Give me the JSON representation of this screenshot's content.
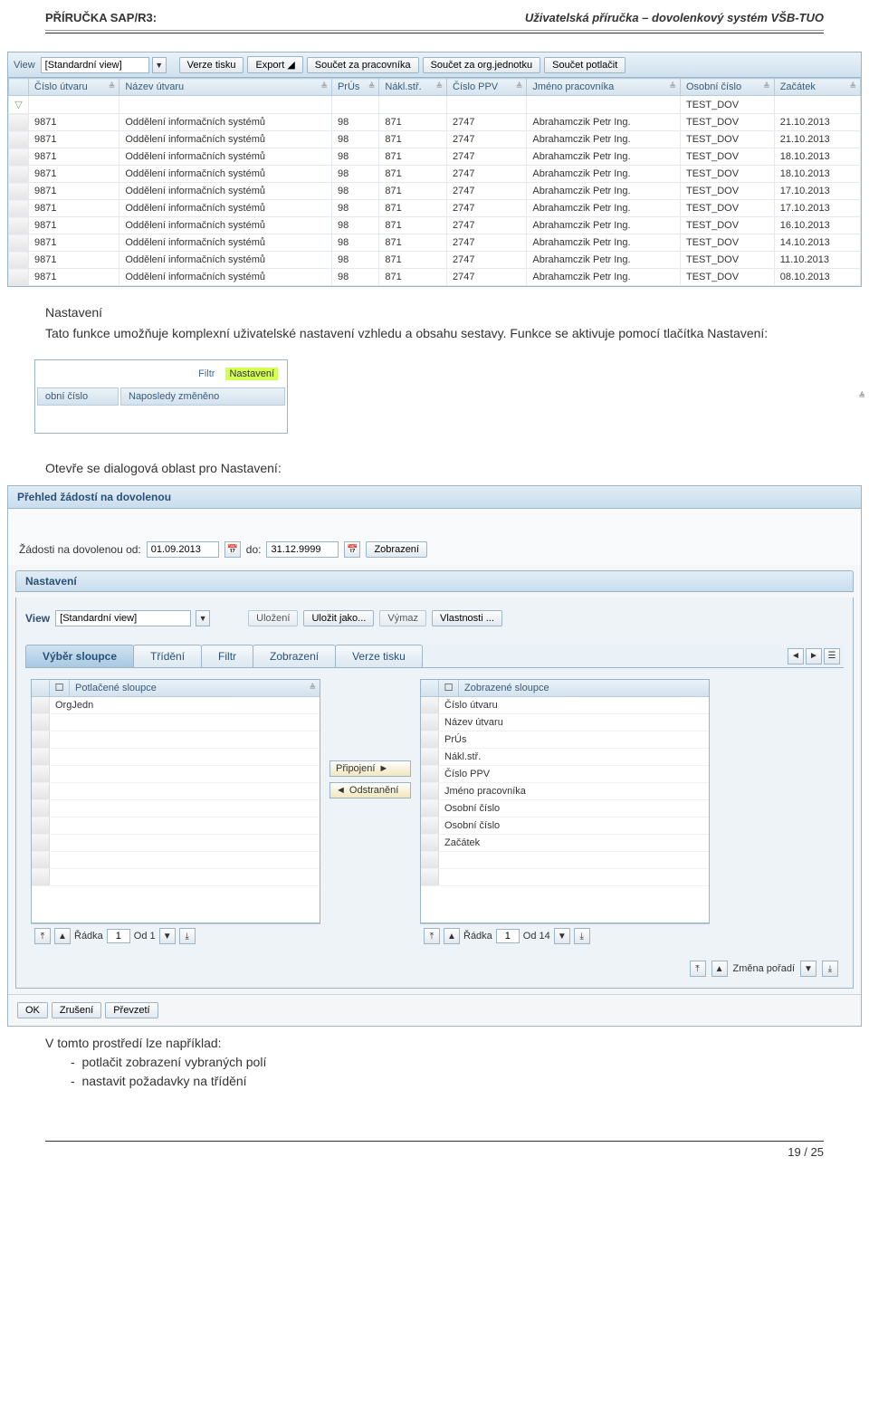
{
  "page": {
    "header_left": "PŘÍRUČKA SAP/R3:",
    "header_right": "Uživatelská příručka – dovolenkový systém VŠB-TUO",
    "footer": "19 / 25"
  },
  "toolbar": {
    "view_label": "View",
    "view_value": "[Standardní view]",
    "buttons": [
      "Verze tisku",
      "Export ◢",
      "Součet za pracovníka",
      "Součet za org.jednotku",
      "Součet potlačit"
    ]
  },
  "columns": [
    "Číslo útvaru",
    "Název útvaru",
    "PrÚs",
    "Nákl.stř.",
    "Číslo PPV",
    "Jméno pracovníka",
    "Osobní číslo",
    "Začátek"
  ],
  "filter_row_personal": "TEST_DOV",
  "rows": [
    {
      "cu": "9871",
      "nazev": "Oddělení informačních systémů",
      "prus": "98",
      "nakl": "871",
      "ppv": "2747",
      "jmeno": "Abrahamczik Petr Ing.",
      "osob": "TEST_DOV",
      "zac": "21.10.2013"
    },
    {
      "cu": "9871",
      "nazev": "Oddělení informačních systémů",
      "prus": "98",
      "nakl": "871",
      "ppv": "2747",
      "jmeno": "Abrahamczik Petr Ing.",
      "osob": "TEST_DOV",
      "zac": "21.10.2013"
    },
    {
      "cu": "9871",
      "nazev": "Oddělení informačních systémů",
      "prus": "98",
      "nakl": "871",
      "ppv": "2747",
      "jmeno": "Abrahamczik Petr Ing.",
      "osob": "TEST_DOV",
      "zac": "18.10.2013"
    },
    {
      "cu": "9871",
      "nazev": "Oddělení informačních systémů",
      "prus": "98",
      "nakl": "871",
      "ppv": "2747",
      "jmeno": "Abrahamczik Petr Ing.",
      "osob": "TEST_DOV",
      "zac": "18.10.2013"
    },
    {
      "cu": "9871",
      "nazev": "Oddělení informačních systémů",
      "prus": "98",
      "nakl": "871",
      "ppv": "2747",
      "jmeno": "Abrahamczik Petr Ing.",
      "osob": "TEST_DOV",
      "zac": "17.10.2013"
    },
    {
      "cu": "9871",
      "nazev": "Oddělení informačních systémů",
      "prus": "98",
      "nakl": "871",
      "ppv": "2747",
      "jmeno": "Abrahamczik Petr Ing.",
      "osob": "TEST_DOV",
      "zac": "17.10.2013"
    },
    {
      "cu": "9871",
      "nazev": "Oddělení informačních systémů",
      "prus": "98",
      "nakl": "871",
      "ppv": "2747",
      "jmeno": "Abrahamczik Petr Ing.",
      "osob": "TEST_DOV",
      "zac": "16.10.2013"
    },
    {
      "cu": "9871",
      "nazev": "Oddělení informačních systémů",
      "prus": "98",
      "nakl": "871",
      "ppv": "2747",
      "jmeno": "Abrahamczik Petr Ing.",
      "osob": "TEST_DOV",
      "zac": "14.10.2013"
    },
    {
      "cu": "9871",
      "nazev": "Oddělení informačních systémů",
      "prus": "98",
      "nakl": "871",
      "ppv": "2747",
      "jmeno": "Abrahamczik Petr Ing.",
      "osob": "TEST_DOV",
      "zac": "11.10.2013"
    },
    {
      "cu": "9871",
      "nazev": "Oddělení informačních systémů",
      "prus": "98",
      "nakl": "871",
      "ppv": "2747",
      "jmeno": "Abrahamczik Petr Ing.",
      "osob": "TEST_DOV",
      "zac": "08.10.2013"
    }
  ],
  "prose": {
    "p1_title": "Nastavení",
    "p1_body": "Tato funkce umožňuje komplexní uživatelské nastavení vzhledu a obsahu sestavy. Funkce se aktivuje pomocí tlačítka Nastavení:",
    "p2": "Otevře se dialogová oblast pro Nastavení:",
    "p3_intro": "V tomto prostředí lze například:",
    "p3_li1": "potlačit zobrazení vybraných polí",
    "p3_li2": "nastavit požadavky na třídění"
  },
  "mini": {
    "filtr_link": "Filtr",
    "nastaveni_link": "Nastavení",
    "obni_col": "obní číslo",
    "naposled_col": "Naposledy změněno"
  },
  "dialog": {
    "title": "Přehled žádostí na dovolenou",
    "zadosti_label": "Žádosti na dovolenou od:",
    "date_from": "01.09.2013",
    "do_label": "do:",
    "date_to": "31.12.9999",
    "zobrazeni_btn": "Zobrazení",
    "panel_title": "Nastavení",
    "view_label": "View",
    "view_value": "[Standardní view]",
    "btn_ulozeni": "Uložení",
    "btn_ulozit_jako": "Uložit jako...",
    "btn_vymaz": "Výmaz",
    "btn_vlastnosti": "Vlastnosti ...",
    "tab1": "Výběr sloupce",
    "tab2": "Třídění",
    "tab3": "Filtr",
    "tab4": "Zobrazení",
    "tab5": "Verze tisku",
    "left_header": "Potlačené sloupce",
    "left_items": [
      "OrgJedn"
    ],
    "left_radka": "Řádka",
    "left_row_val": "1",
    "left_od": "Od 1",
    "right_header": "Zobrazené sloupce",
    "right_items": [
      "Číslo útvaru",
      "Název útvaru",
      "PrÚs",
      "Nákl.stř.",
      "Číslo PPV",
      "Jméno pracovníka",
      "Osobní číslo",
      "Osobní číslo",
      "Začátek"
    ],
    "right_radka": "Řádka",
    "right_row_val": "1",
    "right_od": "Od 14",
    "pripojeni": "Připojení",
    "odstraneni": "Odstranění",
    "zmena_poradi": "Změna pořadí",
    "footer_ok": "OK",
    "footer_zruseni": "Zrušení",
    "footer_prevzeti": "Převzetí"
  }
}
